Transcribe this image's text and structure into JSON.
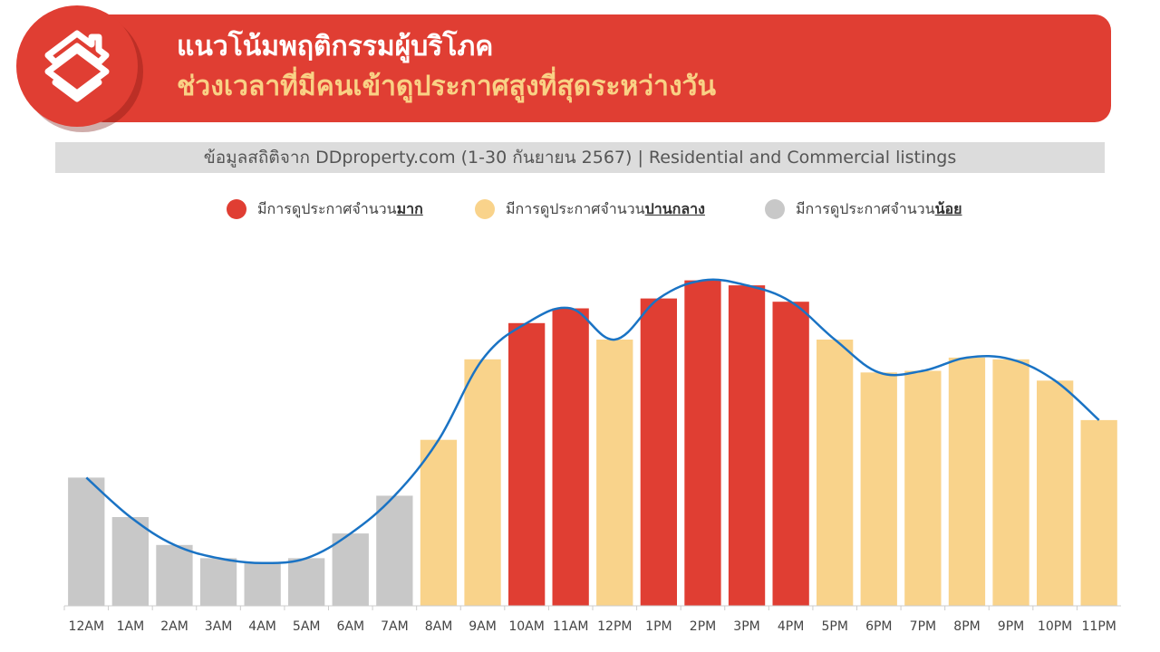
{
  "header": {
    "title_line1": "แนวโน้มพฤติกรรมผู้บริโภค",
    "title_line2": "ช่วงเวลาที่มีคนเข้าดูประกาศสูงที่สุดระหว่างวัน"
  },
  "source": {
    "text": "ข้อมูลสถิติจาก DDproperty.com (1-30 กันยายน 2567) | Residential and Commercial listings"
  },
  "legend": [
    {
      "prefix": "มีการดูประกาศจำนวน",
      "emphasis": "มาก",
      "color": "#e03e33"
    },
    {
      "prefix": "มีการดูประกาศจำนวน",
      "emphasis": "ปานกลาง",
      "color": "#f9d38b"
    },
    {
      "prefix": "มีการดูประกาศจำนวน",
      "emphasis": "น้อย",
      "color": "#c8c8c8"
    }
  ],
  "colors": {
    "high": "#e03e33",
    "medium": "#f9d38b",
    "low": "#c8c8c8",
    "trend_line": "#1a73c4",
    "axis": "#cccccc"
  },
  "chart_data": {
    "type": "bar",
    "categories": [
      "12AM",
      "1AM",
      "2AM",
      "3AM",
      "4AM",
      "5AM",
      "6AM",
      "7AM",
      "8AM",
      "9AM",
      "10AM",
      "11AM",
      "12PM",
      "1PM",
      "2PM",
      "3PM",
      "4PM",
      "5PM",
      "6PM",
      "7PM",
      "8PM",
      "9PM",
      "10PM",
      "11PM"
    ],
    "values": [
      39,
      27,
      18.5,
      14.5,
      13,
      14.5,
      22,
      33.5,
      50.5,
      75,
      86,
      90.5,
      81,
      93.5,
      99,
      97.5,
      92.5,
      81,
      71,
      71.5,
      75.5,
      75,
      68.5,
      56.5
    ],
    "levels": [
      "low",
      "low",
      "low",
      "low",
      "low",
      "low",
      "low",
      "low",
      "medium",
      "medium",
      "high",
      "high",
      "medium",
      "high",
      "high",
      "high",
      "high",
      "medium",
      "medium",
      "medium",
      "medium",
      "medium",
      "medium",
      "medium"
    ],
    "trend": [
      39,
      27,
      18.5,
      14.5,
      13,
      14.5,
      22,
      33.5,
      50.5,
      75,
      86,
      90.5,
      81,
      93.5,
      99,
      97.5,
      92.5,
      81,
      71,
      71.5,
      75.5,
      75,
      68.5,
      56.5
    ],
    "ylim": [
      0,
      100
    ],
    "grid": false
  }
}
